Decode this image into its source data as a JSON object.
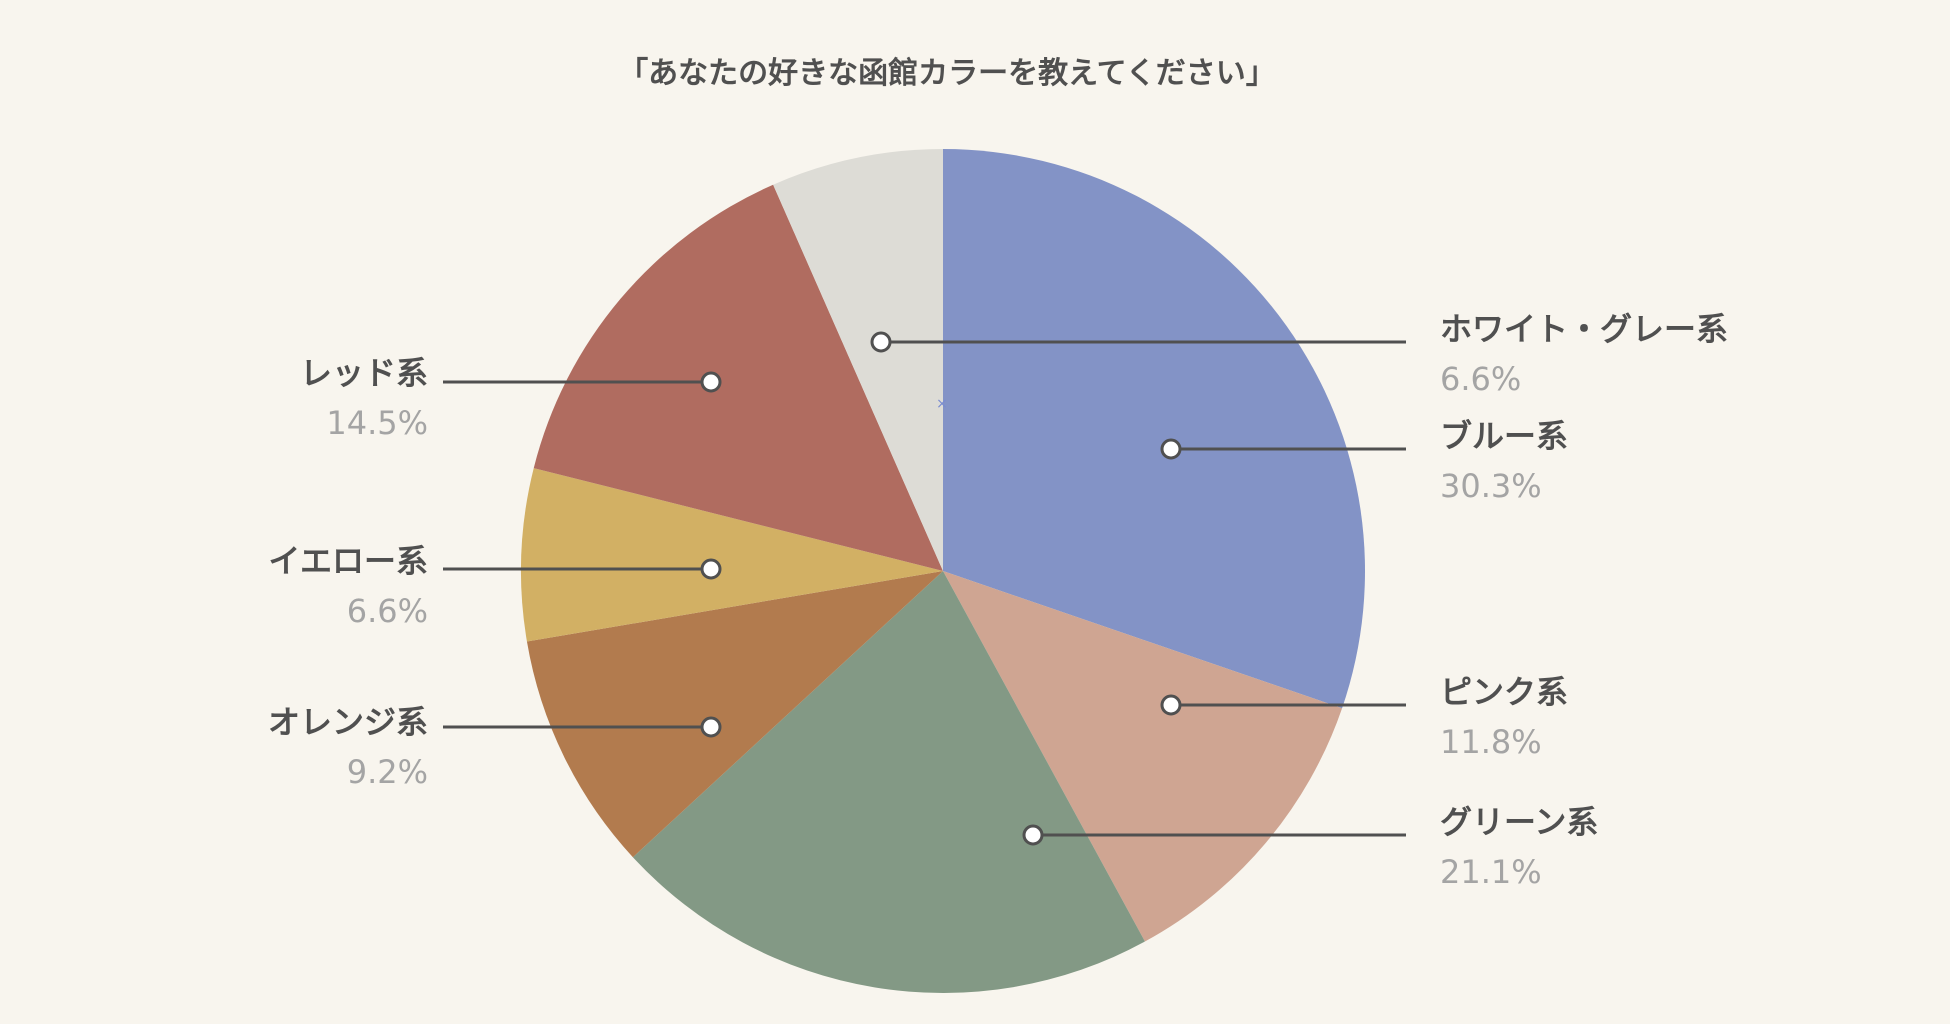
{
  "chart_data": {
    "type": "pie",
    "title": "「あなたの好きな函館カラーを教えてください」",
    "start_angle_deg": 0,
    "direction": "clockwise",
    "slices": [
      {
        "label": "ブルー系",
        "value": 30.3,
        "value_text": "30.3%",
        "color": "#8393c6",
        "side": "right"
      },
      {
        "label": "ピンク系",
        "value": 11.8,
        "value_text": "11.8%",
        "color": "#cfa592",
        "side": "right"
      },
      {
        "label": "グリーン系",
        "value": 21.1,
        "value_text": "21.1%",
        "color": "#839985",
        "side": "right"
      },
      {
        "label": "オレンジ系",
        "value": 9.2,
        "value_text": "9.2%",
        "color": "#b27b4e",
        "side": "left"
      },
      {
        "label": "イエロー系",
        "value": 6.6,
        "value_text": "6.6%",
        "color": "#d2b064",
        "side": "left"
      },
      {
        "label": "レッド系",
        "value": 14.5,
        "value_text": "14.5%",
        "color": "#b06c60",
        "side": "left"
      },
      {
        "label": "ホワイト・グレー系",
        "value": 6.6,
        "value_text": "6.6%",
        "color": "#dddcd6",
        "side": "right"
      }
    ],
    "colors": {
      "background": "#f8f5ee",
      "leader_line": "#505050",
      "label_text": "#505050",
      "value_text": "#a4a4a4"
    }
  }
}
